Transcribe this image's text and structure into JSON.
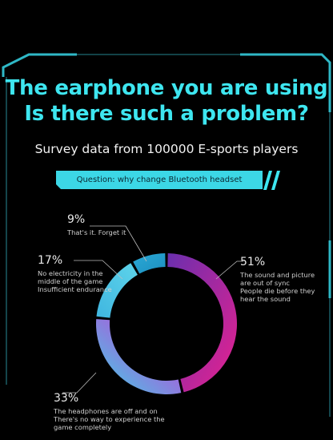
{
  "headline": {
    "line1": "The earphone you are using",
    "line2": "Is there such a problem?"
  },
  "subtitle": "Survey data from 100000 E-sports players",
  "question": "Question: why change Bluetooth headset frequently?",
  "colors": {
    "accent": "#3ee6f0",
    "cyan_bar": "#3cd7e6",
    "ring_51_start": "#6a2fae",
    "ring_51_end": "#e8218f",
    "ring_33_start": "#d62dd6",
    "ring_33_end": "#3fd0e6",
    "ring_17": "#47b4dc",
    "ring_9": "#2aa9d6"
  },
  "chart_data": {
    "type": "pie",
    "donut": true,
    "slices": [
      {
        "value": 51,
        "label": "51%",
        "text": [
          "The sound and picture",
          "are out of sync",
          "People die before they",
          "hear the sound"
        ]
      },
      {
        "value": 33,
        "label": "33%",
        "text": [
          "The headphones are off and on",
          "There's no way to experience the",
          "game completely"
        ]
      },
      {
        "value": 17,
        "label": "17%",
        "text": [
          "No electricity in the",
          "middle of the game",
          "Insufficient endurance"
        ]
      },
      {
        "value": 9,
        "label": "9%",
        "text": [
          "That's it. Forget it"
        ]
      }
    ]
  }
}
